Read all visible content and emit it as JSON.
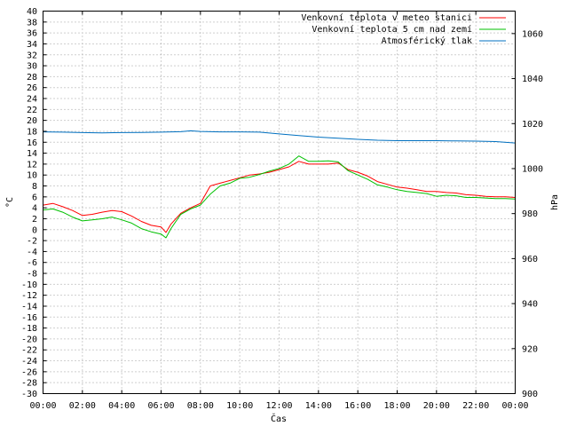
{
  "chart_data": {
    "type": "line",
    "xlabel": "Čas",
    "ylabel": "°C",
    "y2label": "hPa",
    "x_ticks": [
      "00:00",
      "02:00",
      "04:00",
      "06:00",
      "08:00",
      "10:00",
      "12:00",
      "14:00",
      "16:00",
      "18:00",
      "20:00",
      "22:00",
      "00:00"
    ],
    "xlim_hours": [
      0,
      24
    ],
    "ylim": [
      -30,
      40
    ],
    "y_ticks": [
      40,
      38,
      36,
      34,
      32,
      30,
      28,
      26,
      24,
      22,
      20,
      18,
      16,
      14,
      12,
      10,
      8,
      6,
      4,
      2,
      0,
      -2,
      -4,
      -6,
      -8,
      -10,
      -12,
      -14,
      -16,
      -18,
      -20,
      -22,
      -24,
      -26,
      -28,
      -30
    ],
    "y2lim": [
      900,
      1070
    ],
    "y2_ticks": [
      1060,
      1040,
      1020,
      1000,
      980,
      960,
      940,
      920,
      900
    ],
    "grid": true,
    "legend_position": "top-right",
    "series": [
      {
        "name": "Venkovní teplota v meteo stanici",
        "color": "#ff0000",
        "axis": "left",
        "x": [
          0,
          0.5,
          1,
          1.5,
          2,
          2.5,
          3,
          3.5,
          4,
          4.5,
          5,
          5.5,
          6,
          6.25,
          6.5,
          7,
          7.5,
          8,
          8.5,
          9,
          9.5,
          10,
          10.5,
          11,
          11.5,
          12,
          12.5,
          13,
          13.5,
          14,
          14.5,
          15,
          15.5,
          16,
          16.5,
          17,
          17.5,
          18,
          18.5,
          19,
          19.5,
          20,
          20.5,
          21,
          21.5,
          22,
          22.5,
          23,
          23.5,
          24
        ],
        "y": [
          4.5,
          4.8,
          4.2,
          3.5,
          2.6,
          2.8,
          3.2,
          3.5,
          3.3,
          2.5,
          1.5,
          0.8,
          0.5,
          -0.5,
          1,
          3,
          4,
          4.8,
          8,
          8.5,
          9,
          9.5,
          10,
          10.2,
          10.5,
          11,
          11.5,
          12.5,
          12,
          12,
          12,
          12.2,
          11,
          10.5,
          9.8,
          8.8,
          8.3,
          7.8,
          7.6,
          7.3,
          7,
          7,
          6.8,
          6.7,
          6.4,
          6.3,
          6.1,
          6,
          6,
          5.9
        ]
      },
      {
        "name": "Venkovní teplota 5 cm nad zemí",
        "color": "#00c000",
        "axis": "left",
        "x": [
          0,
          0.5,
          1,
          1.5,
          2,
          2.5,
          3,
          3.5,
          4,
          4.5,
          5,
          5.5,
          6,
          6.25,
          6.5,
          7,
          7.5,
          8,
          8.5,
          9,
          9.5,
          10,
          10.5,
          11,
          11.5,
          12,
          12.5,
          13,
          13.5,
          14,
          14.5,
          15,
          15.5,
          16,
          16.5,
          17,
          17.5,
          18,
          18.5,
          19,
          19.5,
          20,
          20.5,
          21,
          21.5,
          22,
          22.5,
          23,
          23.5,
          24
        ],
        "y": [
          3.6,
          3.8,
          3.2,
          2.3,
          1.6,
          1.8,
          2,
          2.3,
          1.8,
          1.2,
          0.2,
          -0.4,
          -0.8,
          -1.5,
          0.2,
          2.8,
          3.8,
          4.5,
          6.5,
          8,
          8.5,
          9.4,
          9.6,
          10.1,
          10.7,
          11.2,
          12,
          13.5,
          12.5,
          12.5,
          12.6,
          12.4,
          10.8,
          10,
          9.2,
          8.2,
          7.8,
          7.3,
          7,
          6.8,
          6.6,
          6.1,
          6.3,
          6.2,
          5.9,
          5.9,
          5.8,
          5.7,
          5.7,
          5.6
        ]
      },
      {
        "name": "Atmosférický tlak",
        "color": "#0070c0",
        "axis": "right",
        "x": [
          0,
          1,
          2,
          3,
          4,
          5,
          6,
          7,
          7.5,
          8,
          9,
          10,
          11,
          12,
          13,
          14,
          15,
          16,
          17,
          18,
          19,
          20,
          21,
          22,
          23,
          24
        ],
        "y": [
          1016.3,
          1016.2,
          1016,
          1015.9,
          1016,
          1016.1,
          1016.2,
          1016.4,
          1016.8,
          1016.5,
          1016.3,
          1016.3,
          1016.2,
          1015.4,
          1014.7,
          1014,
          1013.5,
          1013,
          1012.6,
          1012.4,
          1012.4,
          1012.4,
          1012.3,
          1012.2,
          1012,
          1011.4
        ]
      }
    ]
  }
}
